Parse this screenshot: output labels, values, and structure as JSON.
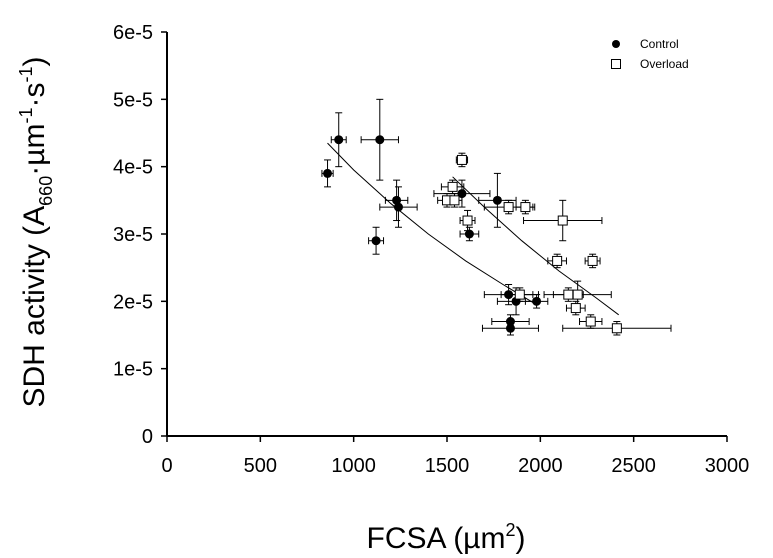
{
  "chart_data": {
    "type": "scatter",
    "xlabel": {
      "main": "FCSA (µm",
      "sup": "2",
      "end": ")"
    },
    "ylabel": {
      "main": "SDH activity (A",
      "sub": "660",
      "mid1": "·µm",
      "sup1": "-1",
      "mid2": "·s",
      "sup2": "-1",
      "end": ")"
    },
    "xlim": [
      0,
      3000
    ],
    "ylim": [
      0,
      6e-05
    ],
    "x_ticks": [
      0,
      500,
      1000,
      1500,
      2000,
      2500,
      3000
    ],
    "x_tick_labels": [
      "0",
      "500",
      "1000",
      "1500",
      "2000",
      "2500",
      "3000"
    ],
    "y_ticks": [
      0,
      1e-05,
      2e-05,
      3e-05,
      4e-05,
      5e-05,
      6e-05
    ],
    "y_tick_labels": [
      "0",
      "1e-5",
      "2e-5",
      "3e-5",
      "4e-5",
      "5e-5",
      "6e-5"
    ],
    "grid": false,
    "legend_position": "top-right",
    "series": [
      {
        "name": "Control",
        "marker": "filled-circle",
        "color": "#000000",
        "points": [
          {
            "x": 860,
            "y": 3.9e-05,
            "xerr": 30,
            "yerr": 2e-06
          },
          {
            "x": 920,
            "y": 4.4e-05,
            "xerr": 40,
            "yerr": 4e-06
          },
          {
            "x": 1120,
            "y": 2.9e-05,
            "xerr": 40,
            "yerr": 2e-06
          },
          {
            "x": 1140,
            "y": 4.4e-05,
            "xerr": 100,
            "yerr": 6e-06
          },
          {
            "x": 1230,
            "y": 3.5e-05,
            "xerr": 60,
            "yerr": 3e-06
          },
          {
            "x": 1240,
            "y": 3.4e-05,
            "xerr": 100,
            "yerr": 3e-06
          },
          {
            "x": 1580,
            "y": 3.6e-05,
            "xerr": 150,
            "yerr": 2e-06
          },
          {
            "x": 1620,
            "y": 3e-05,
            "xerr": 50,
            "yerr": 1e-06
          },
          {
            "x": 1770,
            "y": 3.5e-05,
            "xerr": 100,
            "yerr": 4e-06
          },
          {
            "x": 1830,
            "y": 2.1e-05,
            "xerr": 130,
            "yerr": 1.5e-06
          },
          {
            "x": 1870,
            "y": 2e-05,
            "xerr": 100,
            "yerr": 2e-06
          },
          {
            "x": 1980,
            "y": 2e-05,
            "xerr": 60,
            "yerr": 1e-06
          },
          {
            "x": 1840,
            "y": 1.7e-05,
            "xerr": 100,
            "yerr": 1e-06
          },
          {
            "x": 1840,
            "y": 1.6e-05,
            "xerr": 150,
            "yerr": 1e-06
          }
        ],
        "fit": {
          "x_start": 860,
          "x_end": 1980,
          "points": [
            [
              860,
              4.35e-05
            ],
            [
              1000,
              3.95e-05
            ],
            [
              1200,
              3.45e-05
            ],
            [
              1400,
              3e-05
            ],
            [
              1600,
              2.6e-05
            ],
            [
              1800,
              2.25e-05
            ],
            [
              1980,
              1.95e-05
            ]
          ]
        }
      },
      {
        "name": "Overload",
        "marker": "open-square",
        "color": "#000000",
        "points": [
          {
            "x": 1500,
            "y": 3.5e-05,
            "xerr": 50,
            "yerr": 1e-06
          },
          {
            "x": 1530,
            "y": 3.7e-05,
            "xerr": 60,
            "yerr": 1e-06
          },
          {
            "x": 1540,
            "y": 3.5e-05,
            "xerr": 40,
            "yerr": 1e-06
          },
          {
            "x": 1580,
            "y": 4.1e-05,
            "xerr": 30,
            "yerr": 1e-06
          },
          {
            "x": 1610,
            "y": 3.2e-05,
            "xerr": 40,
            "yerr": 1.5e-06
          },
          {
            "x": 1830,
            "y": 3.4e-05,
            "xerr": 130,
            "yerr": 1e-06
          },
          {
            "x": 1890,
            "y": 2.1e-05,
            "xerr": 100,
            "yerr": 1e-06
          },
          {
            "x": 1920,
            "y": 3.4e-05,
            "xerr": 50,
            "yerr": 1e-06
          },
          {
            "x": 2090,
            "y": 2.6e-05,
            "xerr": 50,
            "yerr": 1e-06
          },
          {
            "x": 2120,
            "y": 3.2e-05,
            "xerr": 210,
            "yerr": 3e-06
          },
          {
            "x": 2150,
            "y": 2.1e-05,
            "xerr": 80,
            "yerr": 1e-06
          },
          {
            "x": 2190,
            "y": 1.9e-05,
            "xerr": 50,
            "yerr": 1e-06
          },
          {
            "x": 2200,
            "y": 2.1e-05,
            "xerr": 180,
            "yerr": 2e-06
          },
          {
            "x": 2270,
            "y": 1.7e-05,
            "xerr": 60,
            "yerr": 1e-06
          },
          {
            "x": 2280,
            "y": 2.6e-05,
            "xerr": 40,
            "yerr": 1e-06
          },
          {
            "x": 2410,
            "y": 1.6e-05,
            "xerr": 290,
            "yerr": 1e-06
          }
        ],
        "fit": {
          "x_start": 1530,
          "x_end": 2420,
          "points": [
            [
              1530,
              3.85e-05
            ],
            [
              1700,
              3.4e-05
            ],
            [
              1900,
              2.9e-05
            ],
            [
              2100,
              2.45e-05
            ],
            [
              2300,
              2.05e-05
            ],
            [
              2420,
              1.8e-05
            ]
          ]
        }
      }
    ]
  }
}
